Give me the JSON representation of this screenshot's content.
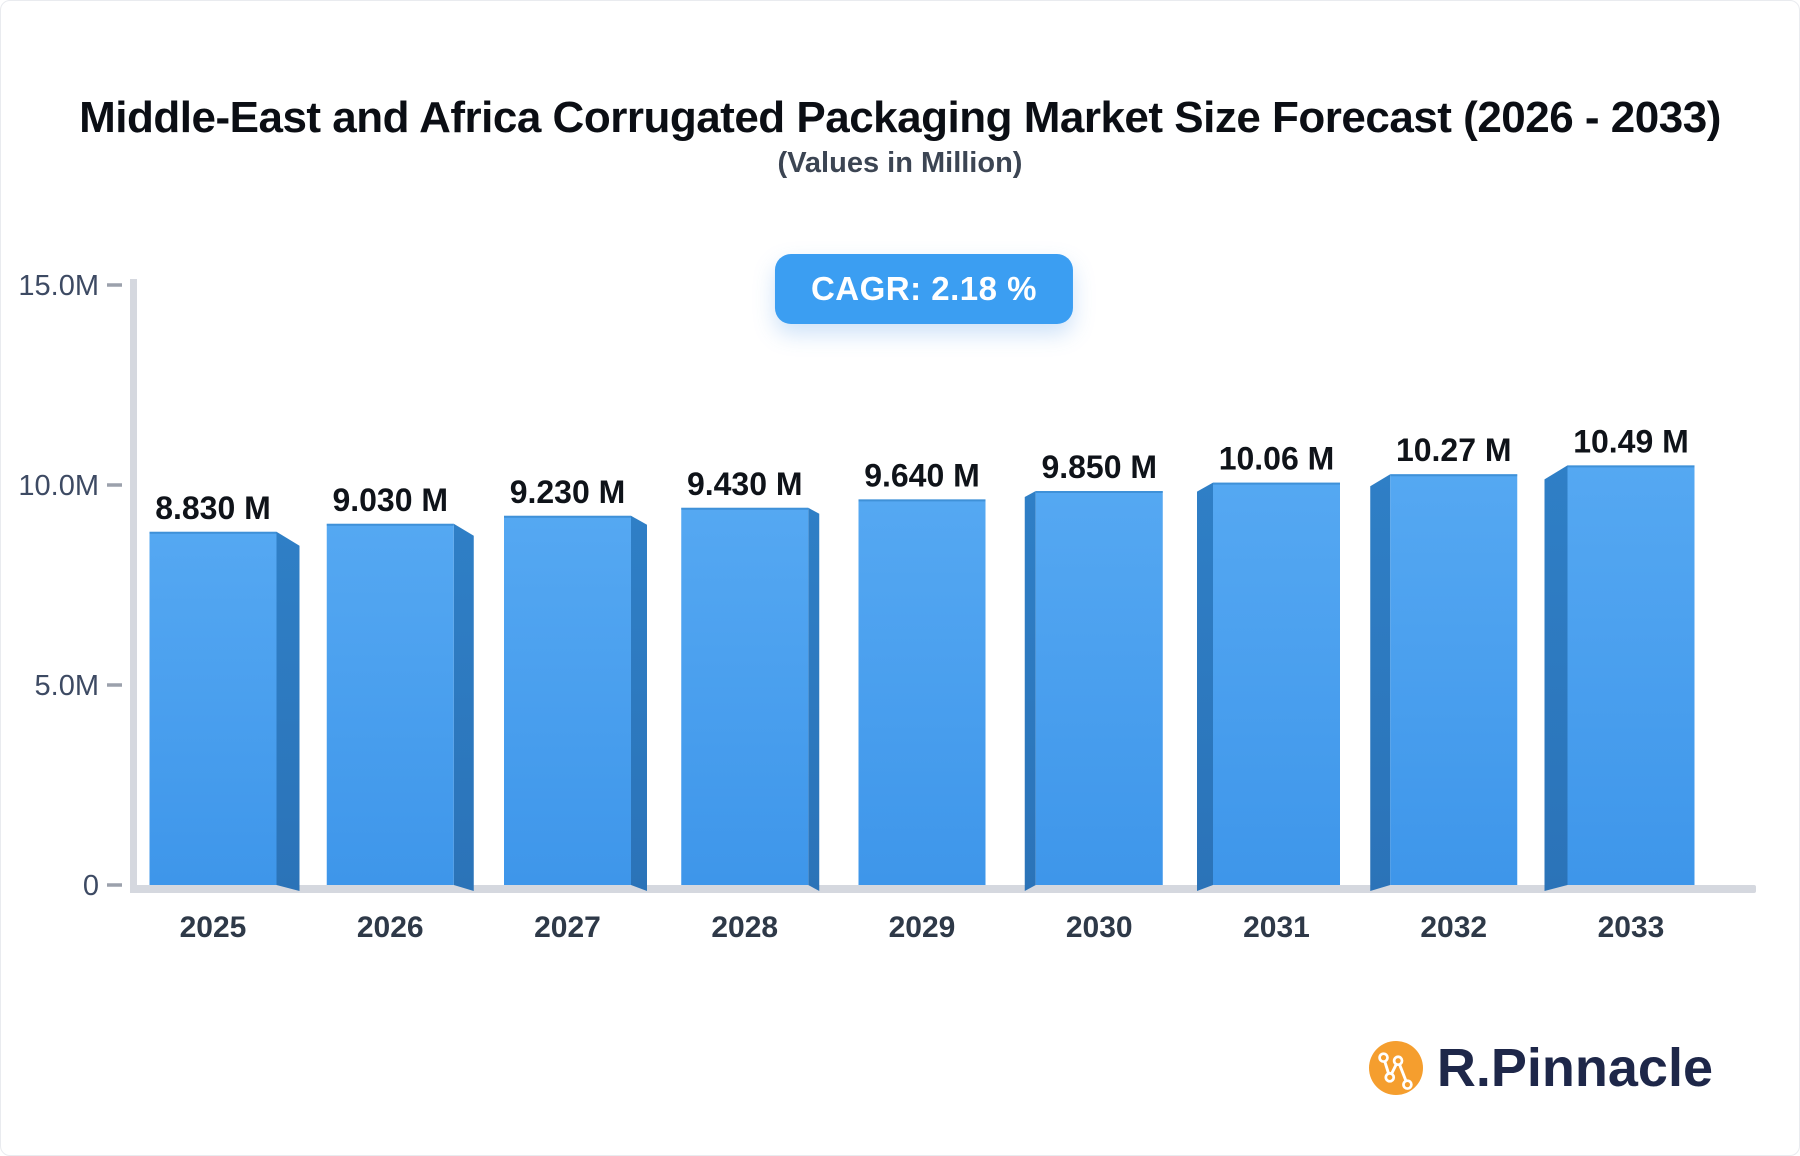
{
  "header": {
    "title": "Middle-East and Africa Corrugated Packaging Market Size Forecast (2026 - 2033)",
    "subtitle": "(Values in Million)"
  },
  "badge": {
    "label": "CAGR: 2.18 %"
  },
  "chart_data": {
    "type": "bar",
    "title": "Middle-East and Africa Corrugated Packaging Market Size Forecast (2026 - 2033)",
    "subtitle": "(Values in Million)",
    "unit": "Million",
    "cagr_percent": 2.18,
    "categories": [
      "2025",
      "2026",
      "2027",
      "2028",
      "2029",
      "2030",
      "2031",
      "2032",
      "2033"
    ],
    "values": [
      8.83,
      9.03,
      9.23,
      9.43,
      9.64,
      9.85,
      10.06,
      10.27,
      10.49
    ],
    "value_labels": [
      "8.830 M",
      "9.030 M",
      "9.230 M",
      "9.430 M",
      "9.640 M",
      "9.850 M",
      "10.06 M",
      "10.27 M",
      "10.49 M"
    ],
    "xlabel": "",
    "ylabel": "",
    "ylim": [
      0,
      15
    ],
    "yticks": [
      {
        "v": 0,
        "label": "0"
      },
      {
        "v": 5,
        "label": "5.0M"
      },
      {
        "v": 10,
        "label": "10.0M"
      },
      {
        "v": 15,
        "label": "15.0M"
      }
    ],
    "grid": false,
    "legend": false,
    "bar_style": "3d-perspective-center"
  },
  "logo": {
    "name": "R.Pinnacle"
  },
  "colors": {
    "badge_bg": "#3B9EF2",
    "badge_text": "#FFFFFF",
    "bar_face_top": "#55A8F2",
    "bar_face_bottom": "#3E96EA",
    "bar_face_edge": "#2D7DC2",
    "bar_side": "#2F7FC6",
    "bar_side_dark": "#2B73B8",
    "axis_strip": "#D5D8DF",
    "tick_dash": "#9BA1AC",
    "ytick_label": "#3D4A63",
    "year_label": "#2E3948",
    "value_label": "#0F1319",
    "title": "#0B0E14",
    "subtitle": "#3C4553",
    "logo_orange": "#F59E2E",
    "logo_navy": "#1E2749"
  }
}
